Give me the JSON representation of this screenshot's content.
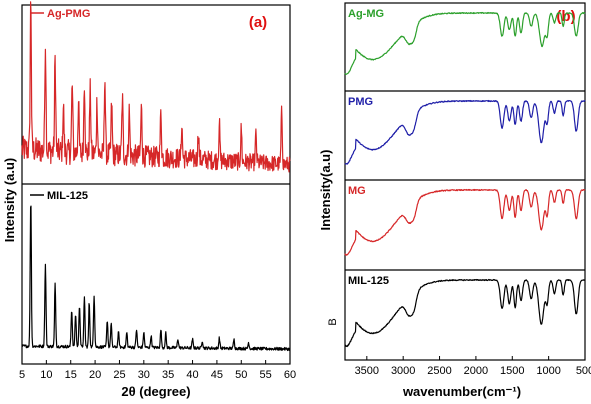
{
  "chart_data": [
    {
      "type": "line",
      "panel_label": "(a)",
      "xlabel": "2θ (degree)",
      "ylabel": "Intensity (a.u)",
      "xlim": [
        5,
        60
      ],
      "xticks": [
        5,
        10,
        15,
        20,
        25,
        30,
        35,
        40,
        45,
        50,
        55,
        60
      ],
      "series": [
        {
          "name": "Ag-PMG",
          "color": "#d62728",
          "peaks": [
            [
              6.8,
              1.0
            ],
            [
              9.8,
              0.72
            ],
            [
              11.8,
              0.62
            ],
            [
              13.5,
              0.3
            ],
            [
              15.3,
              0.45
            ],
            [
              16.6,
              0.33
            ],
            [
              17.8,
              0.48
            ],
            [
              19.0,
              0.42
            ],
            [
              20.4,
              0.35
            ],
            [
              22.0,
              0.52
            ],
            [
              23.4,
              0.35
            ],
            [
              25.6,
              0.38
            ],
            [
              27.0,
              0.3
            ],
            [
              29.5,
              0.32
            ],
            [
              33.5,
              0.3
            ],
            [
              37.8,
              0.22
            ],
            [
              41.2,
              0.18
            ],
            [
              45.5,
              0.25
            ],
            [
              50.0,
              0.22
            ],
            [
              53.0,
              0.18
            ],
            [
              58.3,
              0.35
            ]
          ],
          "noise_level": 0.15,
          "baseline_start": 0.15,
          "baseline_end": 0.05
        },
        {
          "name": "MIL-125",
          "color": "#000000",
          "peaks": [
            [
              6.8,
              1.0
            ],
            [
              9.8,
              0.55
            ],
            [
              11.8,
              0.42
            ],
            [
              15.2,
              0.25
            ],
            [
              16.0,
              0.22
            ],
            [
              16.8,
              0.28
            ],
            [
              17.8,
              0.33
            ],
            [
              18.8,
              0.3
            ],
            [
              19.8,
              0.35
            ],
            [
              22.5,
              0.18
            ],
            [
              23.3,
              0.16
            ],
            [
              24.8,
              0.1
            ],
            [
              26.5,
              0.1
            ],
            [
              28.5,
              0.12
            ],
            [
              30.0,
              0.1
            ],
            [
              31.5,
              0.08
            ],
            [
              33.5,
              0.12
            ],
            [
              34.5,
              0.1
            ],
            [
              37.0,
              0.06
            ],
            [
              40.0,
              0.06
            ],
            [
              42.0,
              0.05
            ],
            [
              45.5,
              0.07
            ],
            [
              48.5,
              0.06
            ],
            [
              51.5,
              0.04
            ]
          ],
          "noise_level": 0.02,
          "baseline_start": 0.04,
          "baseline_end": 0.02
        }
      ]
    },
    {
      "type": "line",
      "panel_label": "(b)",
      "xlabel": "wavenumber(cm⁻¹)",
      "ylabel": "Intensity(a.u)",
      "extra_label": "B",
      "xlim": [
        3800,
        500
      ],
      "xticks": [
        3500,
        3000,
        2500,
        2000,
        1500,
        1000,
        500
      ],
      "series": [
        {
          "name": "Ag-MG",
          "color": "#2ca02c",
          "bands": [
            [
              3420,
              0.7,
              330
            ],
            [
              2920,
              0.22,
              45
            ],
            [
              2850,
              0.18,
              35
            ],
            [
              1640,
              0.35,
              25
            ],
            [
              1540,
              0.25,
              22
            ],
            [
              1460,
              0.35,
              18
            ],
            [
              1380,
              0.3,
              20
            ],
            [
              1240,
              0.2,
              22
            ],
            [
              1090,
              0.5,
              35
            ],
            [
              1020,
              0.3,
              18
            ],
            [
              920,
              0.15,
              18
            ],
            [
              800,
              0.2,
              15
            ],
            [
              620,
              0.35,
              25
            ]
          ]
        },
        {
          "name": "PMG",
          "color": "#1f1fa8",
          "bands": [
            [
              3420,
              0.72,
              330
            ],
            [
              2920,
              0.25,
              45
            ],
            [
              2850,
              0.18,
              35
            ],
            [
              1640,
              0.4,
              25
            ],
            [
              1540,
              0.3,
              22
            ],
            [
              1460,
              0.35,
              18
            ],
            [
              1380,
              0.3,
              20
            ],
            [
              1240,
              0.25,
              22
            ],
            [
              1100,
              0.62,
              35
            ],
            [
              1020,
              0.3,
              18
            ],
            [
              920,
              0.18,
              18
            ],
            [
              800,
              0.22,
              15
            ],
            [
              620,
              0.45,
              25
            ]
          ]
        },
        {
          "name": "MG",
          "color": "#d62728",
          "bands": [
            [
              3420,
              0.75,
              330
            ],
            [
              2920,
              0.22,
              45
            ],
            [
              2850,
              0.18,
              35
            ],
            [
              1640,
              0.42,
              25
            ],
            [
              1540,
              0.3,
              22
            ],
            [
              1460,
              0.4,
              18
            ],
            [
              1380,
              0.3,
              20
            ],
            [
              1240,
              0.25,
              22
            ],
            [
              1100,
              0.58,
              35
            ],
            [
              1020,
              0.35,
              18
            ],
            [
              920,
              0.18,
              18
            ],
            [
              800,
              0.2,
              15
            ],
            [
              620,
              0.42,
              25
            ]
          ]
        },
        {
          "name": "MIL-125",
          "color": "#000000",
          "bands": [
            [
              3420,
              0.78,
              330
            ],
            [
              2920,
              0.25,
              45
            ],
            [
              2850,
              0.2,
              35
            ],
            [
              1640,
              0.42,
              25
            ],
            [
              1540,
              0.35,
              22
            ],
            [
              1460,
              0.4,
              18
            ],
            [
              1380,
              0.3,
              20
            ],
            [
              1240,
              0.28,
              22
            ],
            [
              1100,
              0.65,
              35
            ],
            [
              1020,
              0.32,
              18
            ],
            [
              920,
              0.2,
              18
            ],
            [
              800,
              0.22,
              15
            ],
            [
              620,
              0.5,
              25
            ]
          ]
        }
      ]
    }
  ]
}
